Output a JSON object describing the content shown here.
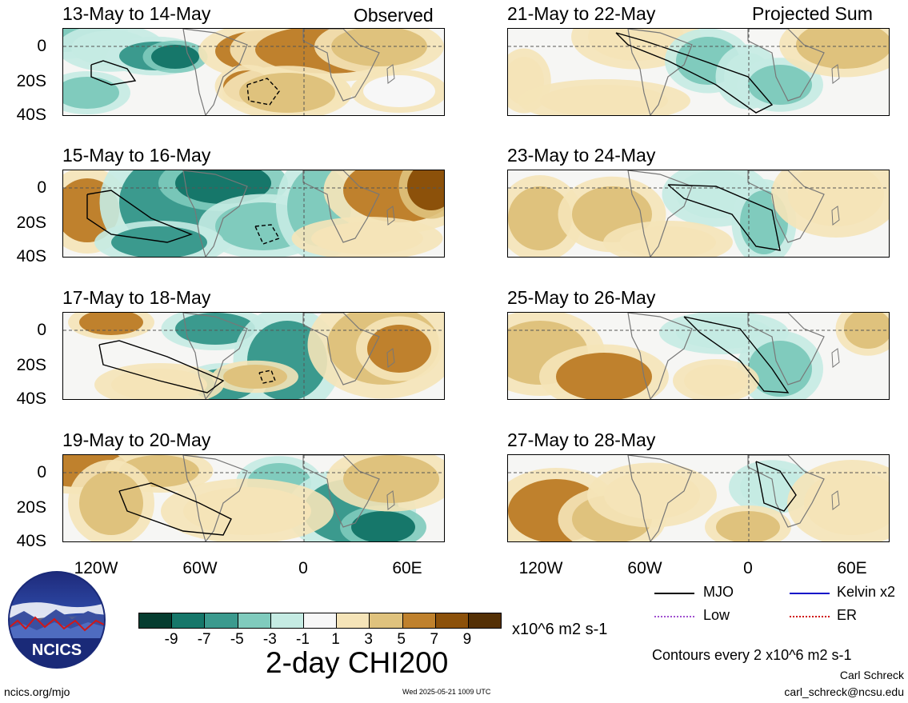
{
  "header": {
    "observed_label": "Observed",
    "projected_label": "Projected Sum"
  },
  "panels_left": [
    {
      "title": "13-May to 14-May"
    },
    {
      "title": "15-May to 16-May"
    },
    {
      "title": "17-May to 18-May"
    },
    {
      "title": "19-May to 20-May"
    }
  ],
  "panels_right": [
    {
      "title": "21-May to 22-May"
    },
    {
      "title": "23-May to 24-May"
    },
    {
      "title": "25-May to 26-May"
    },
    {
      "title": "27-May to 28-May"
    }
  ],
  "axes": {
    "lat_labels": [
      "0",
      "20S",
      "40S"
    ],
    "lon_labels": [
      "120W",
      "60W",
      "0",
      "60E"
    ]
  },
  "legend": {
    "mjo": "MJO",
    "kelvin": "Kelvin x2",
    "low": "Low",
    "er": "ER",
    "colors": {
      "mjo": "#000000",
      "kelvin": "#1010c8",
      "low": "#a050d0",
      "er": "#d01010"
    }
  },
  "colorbar": {
    "ticks": [
      "-9",
      "-7",
      "-5",
      "-3",
      "-1",
      "1",
      "3",
      "5",
      "7",
      "9"
    ],
    "colors": [
      "#053d30",
      "#16776a",
      "#3b9a8e",
      "#80cbbd",
      "#c5ebe3",
      "#f7f7f7",
      "#f5e4b8",
      "#dfc27d",
      "#bf812d",
      "#8c510a",
      "#543005"
    ],
    "units": "x10^6 m2 s-1",
    "title": "2-day CHI200"
  },
  "footer": {
    "contours_note": "Contours every 2 x10^6 m2 s-1",
    "author": "Carl Schreck",
    "email": "carl_schreck@ncsu.edu",
    "site": "ncics.org/mjo",
    "timestamp": "Wed 2025-05-21 1009 UTC",
    "logo_text": "NCICS"
  }
}
